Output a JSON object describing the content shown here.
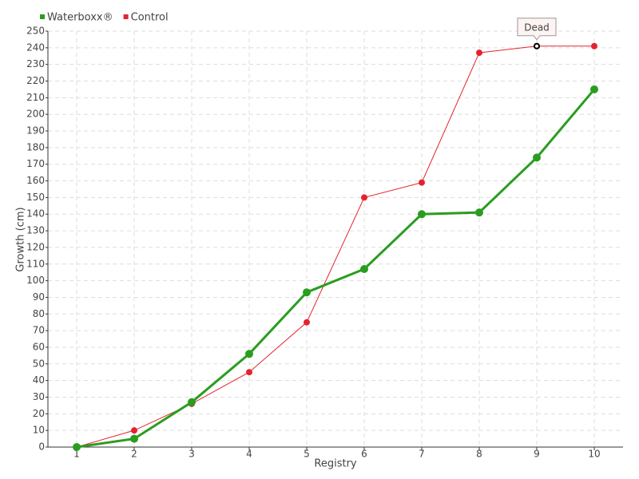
{
  "chart_data": {
    "type": "line",
    "x_label": "Registry",
    "y_label": "Growth (cm)",
    "x": [
      1,
      2,
      3,
      4,
      5,
      6,
      7,
      8,
      9,
      10
    ],
    "series": [
      {
        "name": "Waterboxx®",
        "color": "#2a9d1f",
        "values": [
          0,
          5,
          27,
          56,
          93,
          107,
          140,
          141,
          174,
          215
        ]
      },
      {
        "name": "Control",
        "color": "#e3242e",
        "values": [
          0,
          10,
          26,
          45,
          75,
          150,
          159,
          237,
          241,
          241
        ]
      }
    ],
    "xlim": [
      0.5,
      10.5
    ],
    "xticks": [
      1,
      2,
      3,
      4,
      5,
      6,
      7,
      8,
      9,
      10
    ],
    "ylim": [
      0,
      250
    ],
    "yticks": [
      0,
      10,
      20,
      30,
      40,
      50,
      60,
      70,
      80,
      90,
      100,
      110,
      120,
      130,
      140,
      150,
      160,
      170,
      180,
      190,
      200,
      210,
      220,
      230,
      240,
      250
    ],
    "grid": true,
    "legend": "top-left",
    "annotations": [
      {
        "label": "Dead",
        "x": 9,
        "y": 241
      }
    ]
  }
}
